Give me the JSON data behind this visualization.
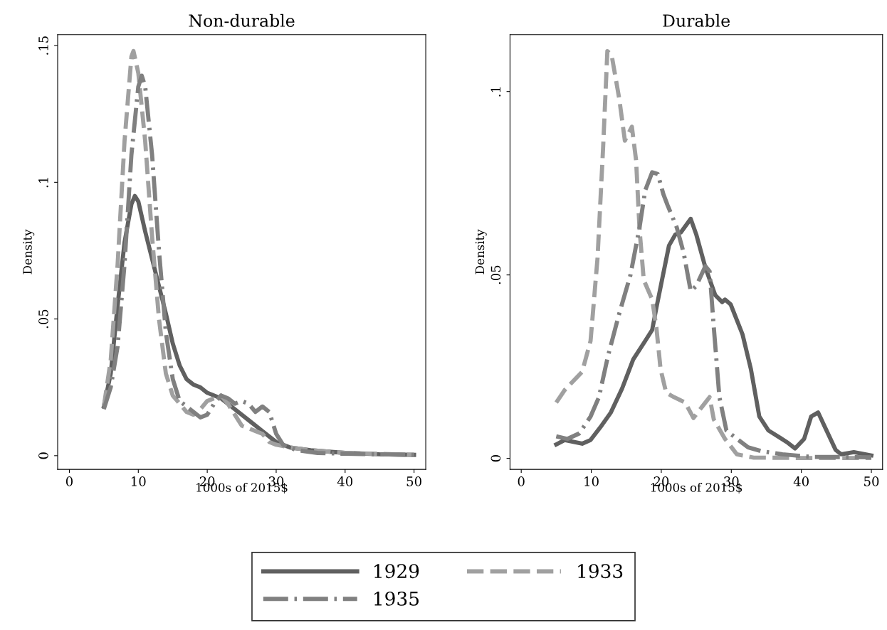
{
  "chart_data": [
    {
      "type": "line",
      "title": "Non-durable",
      "xlabel": "1000s of 2015$",
      "ylabel": "Density",
      "xlim": [
        -1.7,
        51.7
      ],
      "ylim": [
        -0.005,
        0.154
      ],
      "xticks": [
        0,
        10,
        20,
        30,
        40,
        50
      ],
      "yticks": [
        0,
        {
          "value": 0.05,
          "label": ".05"
        },
        {
          "value": 0.1,
          "label": ".1"
        },
        {
          "value": 0.15,
          "label": ".15"
        }
      ],
      "grid": false,
      "legend": "bottom",
      "series": [
        {
          "name": "1929",
          "color": "#606060",
          "line_style": "solid",
          "x": [
            5,
            6,
            7,
            8,
            9,
            9.5,
            10,
            11,
            12,
            13,
            14,
            15,
            16,
            17,
            18,
            19,
            20,
            22,
            24,
            26,
            28,
            30,
            32,
            35,
            40,
            45,
            50
          ],
          "values": [
            0.018,
            0.03,
            0.055,
            0.078,
            0.092,
            0.095,
            0.093,
            0.082,
            0.072,
            0.062,
            0.052,
            0.041,
            0.033,
            0.028,
            0.026,
            0.025,
            0.023,
            0.021,
            0.017,
            0.013,
            0.009,
            0.005,
            0.003,
            0.002,
            0.001,
            0.0005,
            0.0003
          ]
        },
        {
          "name": "1933",
          "color": "#a0a0a0",
          "line_style": "dashed",
          "x": [
            5,
            6,
            7,
            8,
            9,
            9.3,
            10,
            11,
            12,
            13,
            14,
            15,
            16,
            17,
            18,
            19,
            20,
            21,
            22,
            23,
            24,
            25,
            26,
            27,
            28,
            29,
            30,
            32,
            35,
            40,
            50
          ],
          "values": [
            0.018,
            0.035,
            0.07,
            0.115,
            0.146,
            0.148,
            0.14,
            0.115,
            0.08,
            0.05,
            0.03,
            0.022,
            0.019,
            0.016,
            0.015,
            0.017,
            0.02,
            0.021,
            0.022,
            0.019,
            0.015,
            0.011,
            0.01,
            0.009,
            0.008,
            0.005,
            0.004,
            0.003,
            0.002,
            0.001,
            0.0003
          ]
        },
        {
          "name": "1935",
          "color": "#808080",
          "line_style": "dashdot",
          "x": [
            5,
            6,
            7,
            8,
            9,
            10,
            10.5,
            11,
            12,
            13,
            14,
            15,
            16,
            17,
            18,
            19,
            20,
            21,
            22,
            23,
            24,
            25,
            26,
            27,
            28,
            29,
            30,
            31,
            33,
            36,
            40,
            50
          ],
          "values": [
            0.017,
            0.025,
            0.04,
            0.07,
            0.11,
            0.135,
            0.139,
            0.135,
            0.11,
            0.075,
            0.045,
            0.028,
            0.02,
            0.018,
            0.016,
            0.014,
            0.015,
            0.019,
            0.022,
            0.021,
            0.019,
            0.02,
            0.019,
            0.016,
            0.018,
            0.016,
            0.008,
            0.004,
            0.002,
            0.001,
            0.0007,
            0.0003
          ]
        }
      ]
    },
    {
      "type": "line",
      "title": "Durable",
      "xlabel": "1000s of 2015$",
      "ylabel": "Density",
      "xlim": [
        -1.6,
        51.6
      ],
      "ylim": [
        -0.003,
        0.1155
      ],
      "xticks": [
        0,
        10,
        20,
        30,
        40,
        50
      ],
      "yticks": [
        0,
        {
          "value": 0.05,
          "label": ".05"
        },
        {
          "value": 0.1,
          "label": ".1"
        }
      ],
      "grid": false,
      "series": [
        {
          "name": "1929",
          "color": "#606060",
          "line_style": "solid",
          "x": [
            5,
            6.2,
            8.7,
            9.9,
            11.5,
            12.8,
            14.4,
            16,
            17.7,
            18.7,
            19.3,
            20.1,
            21.1,
            22,
            22.8,
            24.2,
            25,
            26.3,
            27.7,
            28.7,
            29.1,
            29.9,
            31.6,
            32.8,
            34,
            35.3,
            36.9,
            38.1,
            39.1,
            40.4,
            41.4,
            42.4,
            43.4,
            44.9,
            45.7,
            47.5,
            50
          ],
          "values": [
            0.0038,
            0.005,
            0.004,
            0.005,
            0.009,
            0.0125,
            0.019,
            0.027,
            0.032,
            0.035,
            0.041,
            0.0486,
            0.058,
            0.061,
            0.0616,
            0.0653,
            0.061,
            0.052,
            0.0445,
            0.0426,
            0.0433,
            0.042,
            0.0338,
            0.0243,
            0.0114,
            0.0076,
            0.0057,
            0.0042,
            0.0027,
            0.0053,
            0.0114,
            0.0125,
            0.0084,
            0.0023,
            0.0011,
            0.0017,
            0.0008
          ]
        },
        {
          "name": "1933",
          "color": "#a0a0a0",
          "line_style": "dashed",
          "x": [
            5,
            6.2,
            8.7,
            9.9,
            10.9,
            11.7,
            12.3,
            12.9,
            14,
            14.8,
            15.8,
            16.4,
            16.9,
            17.5,
            18.7,
            19.3,
            19.9,
            20.7,
            21.8,
            23.4,
            24.6,
            25.8,
            26.9,
            27.5,
            29.1,
            30.8,
            33.2,
            40,
            50
          ],
          "values": [
            0.0152,
            0.0186,
            0.0236,
            0.032,
            0.0547,
            0.085,
            0.111,
            0.11,
            0.098,
            0.0866,
            0.0904,
            0.0813,
            0.0623,
            0.0486,
            0.0433,
            0.0357,
            0.0243,
            0.0179,
            0.0167,
            0.0152,
            0.011,
            0.014,
            0.0167,
            0.0106,
            0.0053,
            0.0011,
            0.0002,
            0.0001,
            0.0001
          ]
        },
        {
          "name": "1935",
          "color": "#808080",
          "line_style": "dashdot",
          "x": [
            5,
            6.6,
            8.3,
            9.9,
            11.1,
            12.4,
            14,
            15.6,
            16.9,
            17.7,
            18.7,
            19.5,
            20.3,
            20.9,
            22.2,
            23.2,
            24.2,
            25,
            26.3,
            26.9,
            27.5,
            28.3,
            29.3,
            30.8,
            32.4,
            34.4,
            37.3,
            41.4,
            50
          ],
          "values": [
            0.006,
            0.0053,
            0.0068,
            0.0114,
            0.0167,
            0.028,
            0.0395,
            0.05,
            0.063,
            0.073,
            0.078,
            0.0775,
            0.072,
            0.069,
            0.063,
            0.056,
            0.0456,
            0.047,
            0.0524,
            0.051,
            0.0357,
            0.0167,
            0.0076,
            0.0053,
            0.003,
            0.0019,
            0.0011,
            0.0004,
            0.0003
          ]
        }
      ]
    }
  ]
}
